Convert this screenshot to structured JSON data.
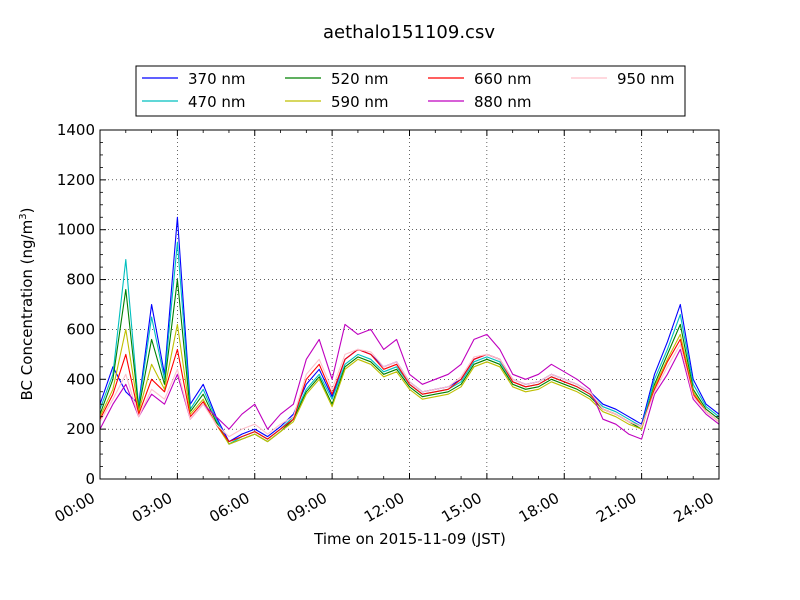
{
  "chart_data": {
    "type": "line",
    "title": "aethalo151109.csv",
    "xlabel": "Time on 2015-11-09 (JST)",
    "ylabel_main": "BC Concentration (ng/m",
    "ylabel_sup": "3",
    "ylabel_close": ")",
    "xlim": [
      0,
      24
    ],
    "ylim": [
      0,
      1400
    ],
    "grid": true,
    "legend_position": "top-center",
    "x_ticks": [
      0,
      3,
      6,
      9,
      12,
      15,
      18,
      21,
      24
    ],
    "x_tick_labels": [
      "00:00",
      "03:00",
      "06:00",
      "09:00",
      "12:00",
      "15:00",
      "18:00",
      "21:00",
      "24:00"
    ],
    "y_ticks": [
      0,
      200,
      400,
      600,
      800,
      1000,
      1200,
      1400
    ],
    "y_tick_labels": [
      "0",
      "200",
      "400",
      "600",
      "800",
      "1000",
      "1200",
      "1400"
    ],
    "x": [
      0,
      0.5,
      1,
      1.5,
      2,
      2.5,
      3,
      3.5,
      4,
      4.5,
      5,
      5.5,
      6,
      6.5,
      7,
      7.5,
      8,
      8.5,
      9,
      9.5,
      10,
      10.5,
      11,
      11.5,
      12,
      12.5,
      13,
      13.5,
      14,
      14.5,
      15,
      15.5,
      16,
      16.5,
      17,
      17.5,
      18,
      18.5,
      19,
      19.5,
      20,
      20.5,
      21,
      21.5,
      22,
      22.5,
      23,
      23.5,
      24
    ],
    "series": [
      {
        "name": "370 nm",
        "color": "#0000ff",
        "values": [
          300,
          450,
          350,
          300,
          700,
          420,
          1050,
          300,
          380,
          250,
          150,
          180,
          200,
          170,
          210,
          260,
          380,
          440,
          330,
          480,
          520,
          500,
          450,
          470,
          390,
          350,
          360,
          370,
          400,
          480,
          500,
          480,
          400,
          380,
          390,
          420,
          400,
          380,
          350,
          300,
          280,
          250,
          220,
          420,
          550,
          700,
          400,
          300,
          260
        ]
      },
      {
        "name": "470 nm",
        "color": "#00bfbf",
        "values": [
          280,
          420,
          880,
          290,
          650,
          400,
          950,
          280,
          360,
          240,
          140,
          170,
          190,
          160,
          200,
          250,
          360,
          420,
          320,
          460,
          500,
          480,
          430,
          450,
          380,
          340,
          350,
          360,
          390,
          470,
          490,
          470,
          390,
          370,
          380,
          410,
          390,
          370,
          340,
          290,
          270,
          240,
          210,
          400,
          520,
          660,
          380,
          290,
          250
        ]
      },
      {
        "name": "520 nm",
        "color": "#008000",
        "values": [
          260,
          400,
          760,
          280,
          560,
          380,
          800,
          270,
          340,
          230,
          140,
          160,
          180,
          150,
          190,
          240,
          350,
          410,
          300,
          450,
          490,
          470,
          420,
          440,
          370,
          330,
          340,
          350,
          380,
          460,
          480,
          460,
          380,
          360,
          370,
          400,
          380,
          360,
          330,
          280,
          260,
          230,
          200,
          380,
          500,
          620,
          360,
          280,
          240
        ]
      },
      {
        "name": "590 nm",
        "color": "#bfbf00",
        "values": [
          250,
          360,
          600,
          270,
          460,
          360,
          620,
          260,
          320,
          220,
          140,
          160,
          180,
          150,
          190,
          230,
          340,
          400,
          290,
          440,
          480,
          460,
          410,
          430,
          360,
          320,
          330,
          340,
          370,
          450,
          470,
          450,
          370,
          350,
          360,
          390,
          370,
          350,
          320,
          270,
          250,
          220,
          200,
          370,
          480,
          580,
          350,
          270,
          230
        ]
      },
      {
        "name": "660 nm",
        "color": "#ff0000",
        "values": [
          240,
          340,
          500,
          260,
          400,
          350,
          520,
          250,
          310,
          220,
          150,
          170,
          190,
          160,
          200,
          240,
          400,
          460,
          340,
          480,
          520,
          500,
          440,
          460,
          380,
          340,
          350,
          360,
          400,
          480,
          500,
          480,
          390,
          370,
          380,
          410,
          390,
          370,
          340,
          280,
          260,
          230,
          210,
          360,
          470,
          560,
          340,
          270,
          230
        ]
      },
      {
        "name": "880 nm",
        "color": "#bf00bf",
        "values": [
          200,
          300,
          380,
          250,
          340,
          300,
          420,
          240,
          300,
          250,
          200,
          260,
          300,
          200,
          260,
          300,
          480,
          560,
          400,
          620,
          580,
          600,
          520,
          560,
          420,
          380,
          400,
          420,
          460,
          560,
          580,
          520,
          420,
          400,
          420,
          460,
          430,
          400,
          360,
          240,
          220,
          180,
          160,
          340,
          420,
          520,
          320,
          260,
          220
        ]
      },
      {
        "name": "950 nm",
        "color": "#ffc0cb",
        "values": [
          230,
          320,
          420,
          250,
          360,
          320,
          440,
          240,
          300,
          220,
          170,
          200,
          220,
          180,
          220,
          250,
          420,
          480,
          360,
          500,
          520,
          510,
          450,
          470,
          390,
          350,
          360,
          370,
          410,
          490,
          500,
          480,
          400,
          380,
          390,
          420,
          400,
          380,
          350,
          280,
          260,
          230,
          210,
          350,
          450,
          540,
          330,
          270,
          230
        ]
      }
    ]
  }
}
